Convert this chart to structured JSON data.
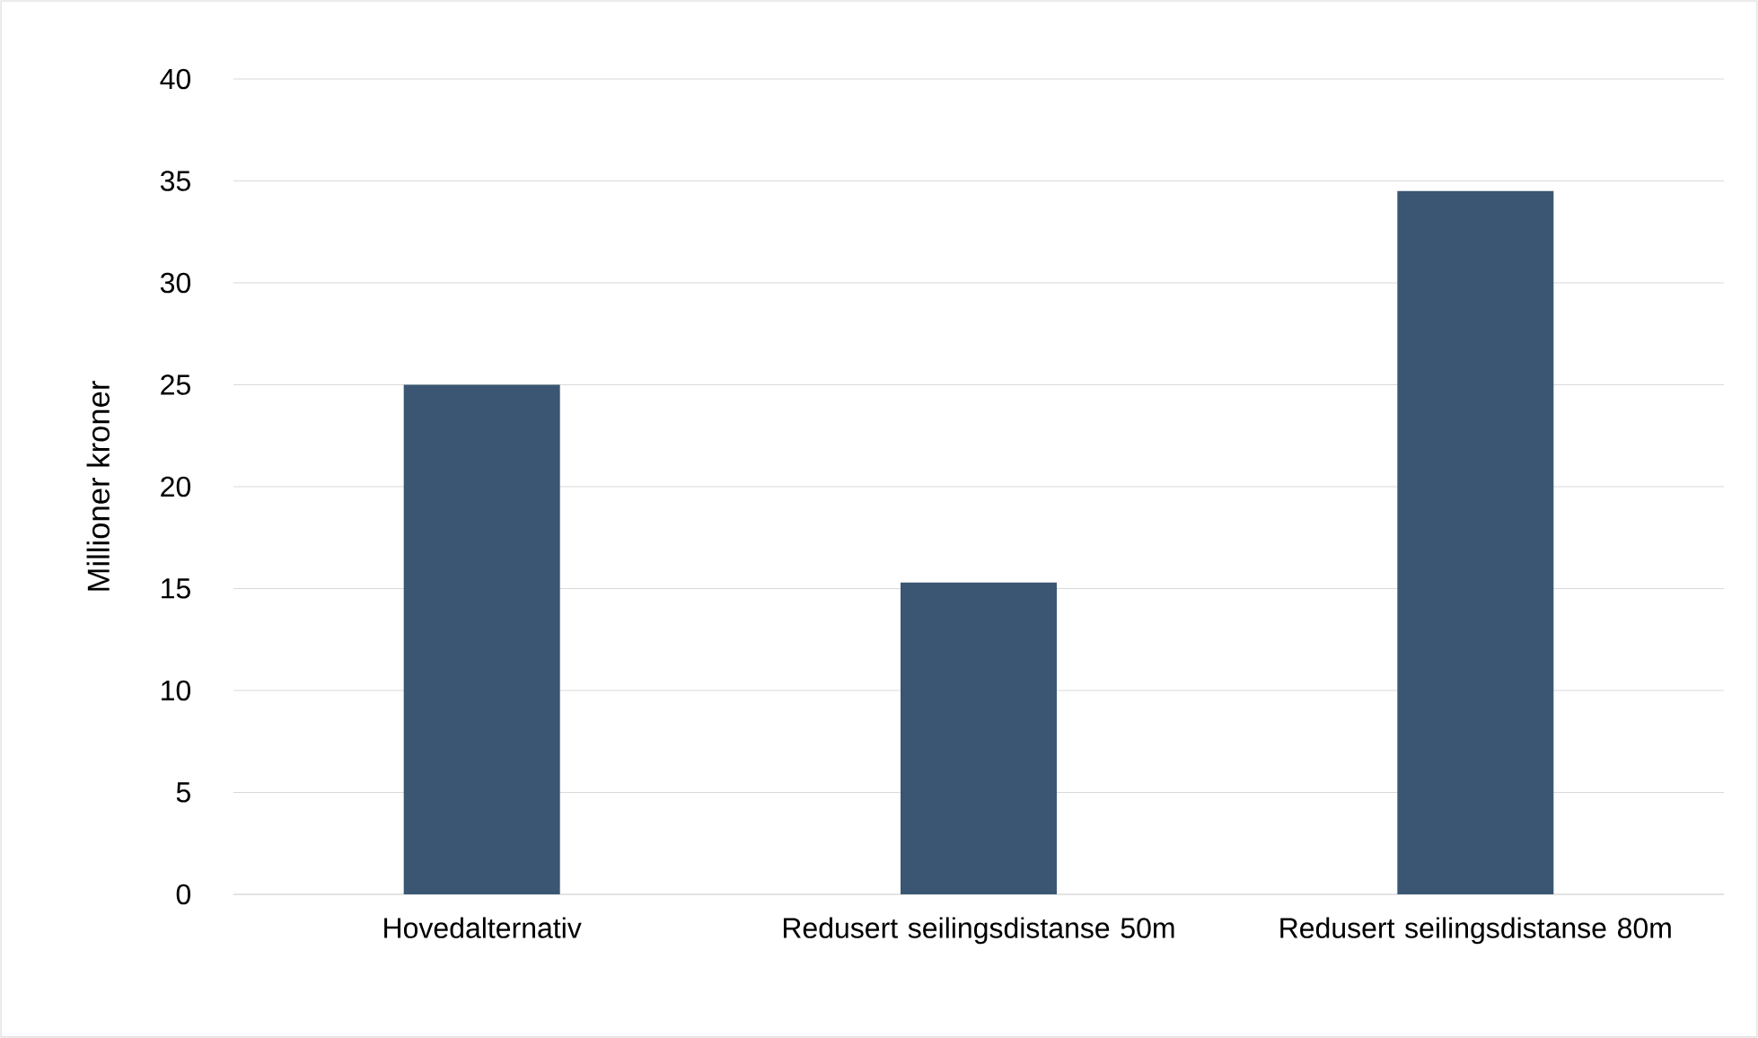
{
  "chart_data": {
    "type": "bar",
    "ylabel": "Millioner kroner",
    "categories": [
      "Hovedalternativ",
      "Redusert seilingsdistanse 50m",
      "Redusert seilingsdistanse 80m"
    ],
    "values": [
      25,
      15.3,
      34.5
    ],
    "color": "#3a5673",
    "ylim": [
      0,
      40
    ],
    "yticks": [
      0,
      5,
      10,
      15,
      20,
      25,
      30,
      35,
      40
    ],
    "grid": "y"
  }
}
